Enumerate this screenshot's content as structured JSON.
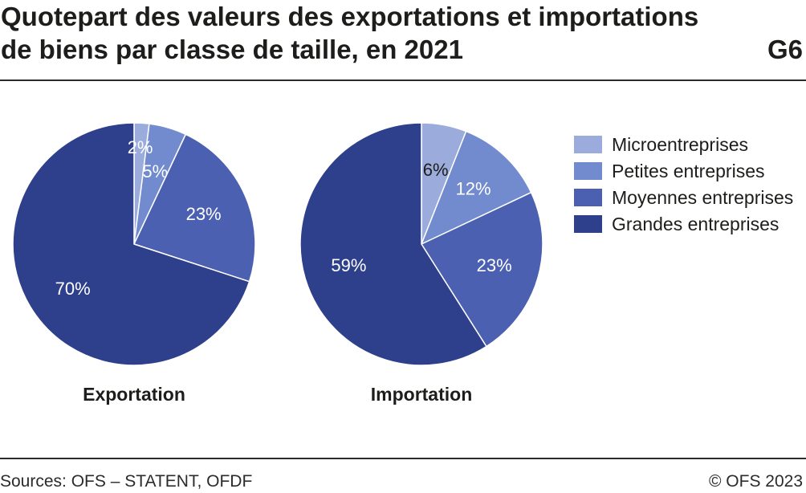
{
  "header": {
    "title_lines": [
      "Quotepart des valeurs des exportations et importations",
      "de biens par classe de taille, en 2021"
    ],
    "figure_id": "G6"
  },
  "chart_data": {
    "type": "pie",
    "categories": [
      "Microentreprises",
      "Petites entreprises",
      "Moyennes entreprises",
      "Grandes entreprises"
    ],
    "colors": [
      "#9babdb",
      "#728bcf",
      "#4c60b1",
      "#2e3f8c"
    ],
    "series": [
      {
        "name": "Exportation",
        "values": [
          2,
          5,
          23,
          70
        ],
        "data_labels": [
          "2%",
          "5%",
          "23%",
          "70%"
        ]
      },
      {
        "name": "Importation",
        "values": [
          6,
          12,
          23,
          59
        ],
        "data_labels": [
          "6%",
          "12%",
          "23%",
          "59%"
        ]
      }
    ],
    "legend_position": "right"
  },
  "footer": {
    "source": "Sources: OFS – STATENT, OFDF",
    "copyright": "© OFS 2023"
  }
}
